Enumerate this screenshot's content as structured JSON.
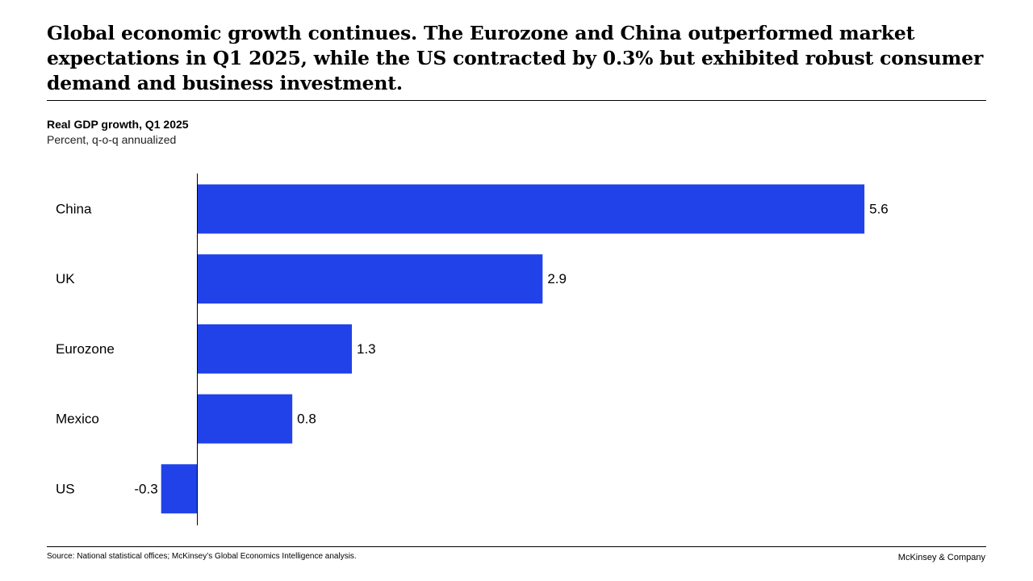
{
  "headline": "Global economic growth continues. The Eurozone and China outperformed market expectations in Q1 2025, while the US contracted by 0.3% but exhibited robust consumer demand and business investment.",
  "chart_data": {
    "type": "bar",
    "orientation": "horizontal",
    "title": "Real GDP  growth, Q1 2025",
    "subtitle": "Percent, q-o-q annualized",
    "categories": [
      "China",
      "UK",
      "Eurozone",
      "Mexico",
      "US"
    ],
    "values": [
      5.6,
      2.9,
      1.3,
      0.8,
      -0.3
    ],
    "value_labels": [
      "5.6",
      "2.9",
      "1.3",
      "0.8",
      "-0.3"
    ],
    "bar_color": "#2042E8",
    "xlim": [
      -0.3,
      5.6
    ],
    "grid": false,
    "legend": "none"
  },
  "footer": {
    "source": "Source: National statistical offices; McKinsey’s Global Economics Intelligence analysis.",
    "brand": "McKinsey & Company"
  }
}
